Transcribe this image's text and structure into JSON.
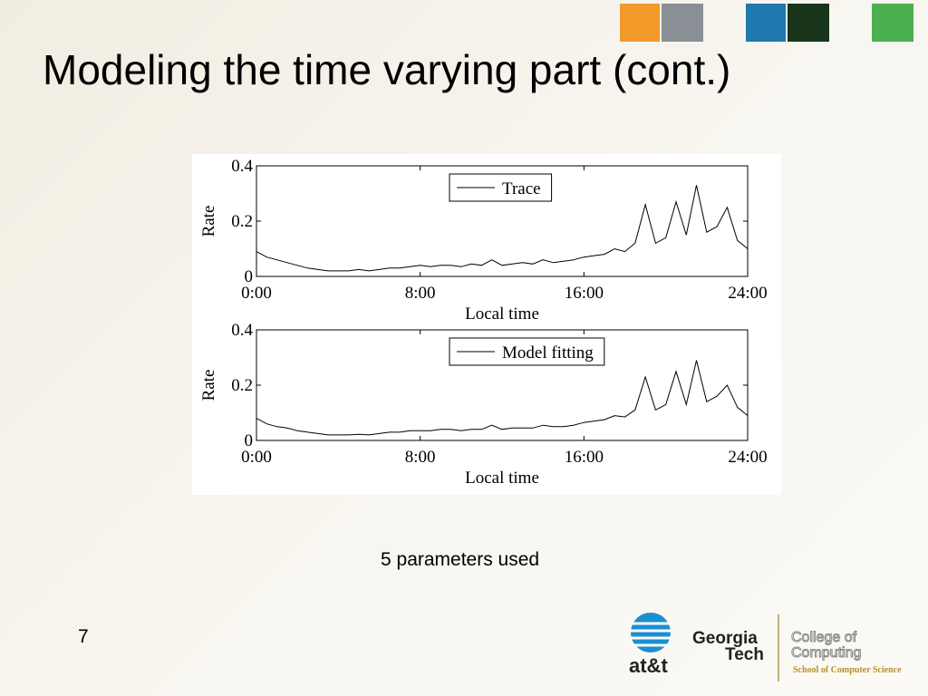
{
  "slide": {
    "title": "Modeling the time varying part (cont.)",
    "caption": "5 parameters used",
    "page_number": "7",
    "logos": {
      "att": "at&t",
      "georgia": "Georgia",
      "tech": "Tech",
      "college": "College of",
      "computing": "Computing",
      "school": "School of Computer Science"
    }
  },
  "chart_data": [
    {
      "type": "line",
      "xlabel": "Local time",
      "ylabel": "Rate",
      "x": [
        0,
        0.5,
        1,
        1.5,
        2,
        2.5,
        3,
        3.5,
        4,
        4.5,
        5,
        5.5,
        6,
        6.5,
        7,
        7.5,
        8,
        8.5,
        9,
        9.5,
        10,
        10.5,
        11,
        11.5,
        12,
        12.5,
        13,
        13.5,
        14,
        14.5,
        15,
        15.5,
        16,
        16.5,
        17,
        17.5,
        18,
        18.5,
        19,
        19.5,
        20,
        20.5,
        21,
        21.5,
        22,
        22.5,
        23,
        23.5,
        24
      ],
      "series": [
        {
          "name": "Trace",
          "color": "#000000",
          "values": [
            0.09,
            0.07,
            0.06,
            0.05,
            0.04,
            0.03,
            0.025,
            0.02,
            0.02,
            0.02,
            0.025,
            0.02,
            0.025,
            0.03,
            0.03,
            0.035,
            0.04,
            0.035,
            0.04,
            0.04,
            0.035,
            0.045,
            0.04,
            0.06,
            0.04,
            0.045,
            0.05,
            0.045,
            0.06,
            0.05,
            0.055,
            0.06,
            0.07,
            0.075,
            0.08,
            0.1,
            0.09,
            0.12,
            0.26,
            0.12,
            0.14,
            0.27,
            0.15,
            0.33,
            0.16,
            0.18,
            0.25,
            0.13,
            0.1
          ]
        }
      ],
      "xlim": [
        0,
        24
      ],
      "xticks": [
        {
          "value": 0,
          "label": "0:00"
        },
        {
          "value": 8,
          "label": "8:00"
        },
        {
          "value": 16,
          "label": "16:00"
        },
        {
          "value": 24,
          "label": "24:00"
        }
      ],
      "ylim": [
        0,
        0.4
      ],
      "yticks": [
        0,
        0.2,
        0.4
      ],
      "legend": "upper center"
    },
    {
      "type": "line",
      "xlabel": "Local time",
      "ylabel": "Rate",
      "x": [
        0,
        0.5,
        1,
        1.5,
        2,
        2.5,
        3,
        3.5,
        4,
        4.5,
        5,
        5.5,
        6,
        6.5,
        7,
        7.5,
        8,
        8.5,
        9,
        9.5,
        10,
        10.5,
        11,
        11.5,
        12,
        12.5,
        13,
        13.5,
        14,
        14.5,
        15,
        15.5,
        16,
        16.5,
        17,
        17.5,
        18,
        18.5,
        19,
        19.5,
        20,
        20.5,
        21,
        21.5,
        22,
        22.5,
        23,
        23.5,
        24
      ],
      "series": [
        {
          "name": "Model fitting",
          "color": "#000000",
          "values": [
            0.08,
            0.06,
            0.05,
            0.045,
            0.035,
            0.03,
            0.025,
            0.02,
            0.02,
            0.02,
            0.022,
            0.02,
            0.025,
            0.03,
            0.03,
            0.035,
            0.035,
            0.035,
            0.04,
            0.04,
            0.035,
            0.04,
            0.04,
            0.055,
            0.04,
            0.045,
            0.045,
            0.045,
            0.055,
            0.05,
            0.05,
            0.055,
            0.065,
            0.07,
            0.075,
            0.09,
            0.085,
            0.11,
            0.23,
            0.11,
            0.13,
            0.25,
            0.13,
            0.29,
            0.14,
            0.16,
            0.2,
            0.12,
            0.09
          ]
        }
      ],
      "xlim": [
        0,
        24
      ],
      "xticks": [
        {
          "value": 0,
          "label": "0:00"
        },
        {
          "value": 8,
          "label": "8:00"
        },
        {
          "value": 16,
          "label": "16:00"
        },
        {
          "value": 24,
          "label": "24:00"
        }
      ],
      "ylim": [
        0,
        0.4
      ],
      "yticks": [
        0,
        0.2,
        0.4
      ],
      "legend": "upper center"
    }
  ]
}
